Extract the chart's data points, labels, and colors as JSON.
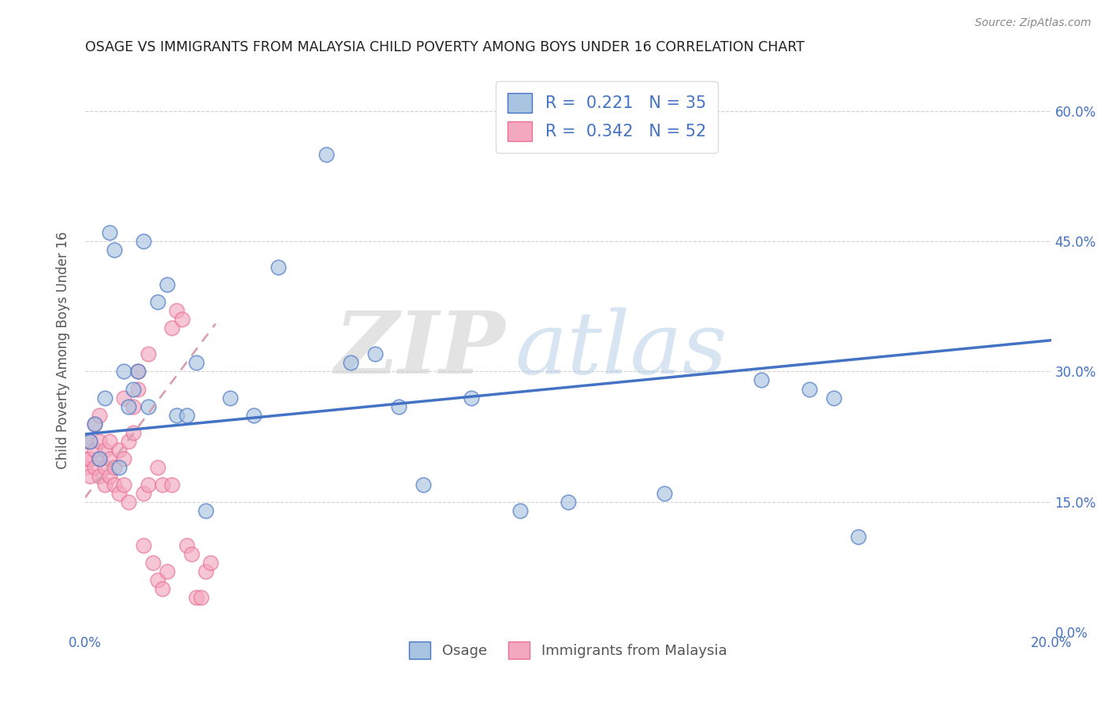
{
  "title": "OSAGE VS IMMIGRANTS FROM MALAYSIA CHILD POVERTY AMONG BOYS UNDER 16 CORRELATION CHART",
  "source": "Source: ZipAtlas.com",
  "ylabel": "Child Poverty Among Boys Under 16",
  "xlim": [
    0.0,
    0.2
  ],
  "ylim": [
    0.0,
    0.65
  ],
  "yticks": [
    0.0,
    0.15,
    0.3,
    0.45,
    0.6
  ],
  "ytick_labels": [
    "0.0%",
    "15.0%",
    "30.0%",
    "45.0%",
    "60.0%"
  ],
  "xtick_labels": [
    "0.0%",
    "",
    "",
    "",
    "",
    "",
    "",
    "",
    "",
    "",
    "20.0%"
  ],
  "legend_labels": [
    "Osage",
    "Immigrants from Malaysia"
  ],
  "osage_R": "0.221",
  "osage_N": "35",
  "malaysia_R": "0.342",
  "malaysia_N": "52",
  "osage_color": "#a8c4e0",
  "malaysia_color": "#f4a8c0",
  "osage_line_color": "#4472c4",
  "malaysia_line_color": "#e87090",
  "grid_color": "#cccccc",
  "background_color": "#ffffff",
  "osage_x": [
    0.001,
    0.002,
    0.003,
    0.004,
    0.005,
    0.006,
    0.007,
    0.008,
    0.009,
    0.01,
    0.011,
    0.012,
    0.013,
    0.015,
    0.017,
    0.019,
    0.021,
    0.023,
    0.025,
    0.03,
    0.035,
    0.04,
    0.05,
    0.055,
    0.06,
    0.065,
    0.07,
    0.08,
    0.09,
    0.1,
    0.12,
    0.14,
    0.15,
    0.155,
    0.16
  ],
  "osage_y": [
    0.22,
    0.24,
    0.2,
    0.27,
    0.46,
    0.44,
    0.19,
    0.3,
    0.26,
    0.28,
    0.3,
    0.45,
    0.26,
    0.38,
    0.4,
    0.25,
    0.25,
    0.31,
    0.14,
    0.27,
    0.25,
    0.42,
    0.55,
    0.31,
    0.32,
    0.26,
    0.17,
    0.27,
    0.14,
    0.15,
    0.16,
    0.29,
    0.28,
    0.27,
    0.11
  ],
  "malaysia_x": [
    0.0,
    0.0,
    0.0,
    0.001,
    0.001,
    0.001,
    0.002,
    0.002,
    0.002,
    0.003,
    0.003,
    0.003,
    0.003,
    0.004,
    0.004,
    0.004,
    0.005,
    0.005,
    0.005,
    0.006,
    0.006,
    0.007,
    0.007,
    0.008,
    0.008,
    0.008,
    0.009,
    0.009,
    0.01,
    0.01,
    0.011,
    0.011,
    0.012,
    0.012,
    0.013,
    0.013,
    0.014,
    0.015,
    0.015,
    0.016,
    0.016,
    0.017,
    0.018,
    0.018,
    0.019,
    0.02,
    0.021,
    0.022,
    0.023,
    0.024,
    0.025,
    0.026
  ],
  "malaysia_y": [
    0.19,
    0.2,
    0.22,
    0.18,
    0.2,
    0.22,
    0.19,
    0.21,
    0.24,
    0.18,
    0.2,
    0.22,
    0.25,
    0.17,
    0.19,
    0.21,
    0.18,
    0.2,
    0.22,
    0.17,
    0.19,
    0.16,
    0.21,
    0.17,
    0.2,
    0.27,
    0.15,
    0.22,
    0.23,
    0.26,
    0.28,
    0.3,
    0.1,
    0.16,
    0.17,
    0.32,
    0.08,
    0.06,
    0.19,
    0.05,
    0.17,
    0.07,
    0.17,
    0.35,
    0.37,
    0.36,
    0.1,
    0.09,
    0.04,
    0.04,
    0.07,
    0.08
  ],
  "osage_trend_x": [
    0.0,
    0.2
  ],
  "osage_trend_y": [
    0.228,
    0.336
  ],
  "malaysia_trend_x": [
    0.0,
    0.027
  ],
  "malaysia_trend_y": [
    0.155,
    0.355
  ]
}
